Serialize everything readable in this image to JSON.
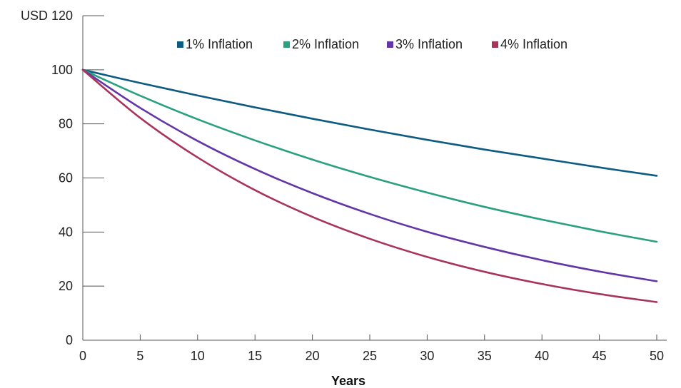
{
  "chart_data": {
    "type": "line",
    "title": "",
    "xlabel": "Years",
    "ylabel": "",
    "y_unit_label": "USD 120",
    "xlim": [
      0,
      50
    ],
    "ylim": [
      0,
      120
    ],
    "x_ticks": [
      0,
      5,
      10,
      15,
      20,
      25,
      30,
      35,
      40,
      45,
      50
    ],
    "y_ticks": [
      0,
      20,
      40,
      60,
      80,
      100,
      120
    ],
    "y_tick_labels": [
      "0",
      "20",
      "40",
      "60",
      "80",
      "100",
      "USD 120"
    ],
    "grid": false,
    "legend_position": "top",
    "x": [
      0,
      5,
      10,
      15,
      20,
      25,
      30,
      35,
      40,
      45,
      50
    ],
    "series": [
      {
        "name": "1% Inflation",
        "color": "#0e5b82",
        "values": [
          100,
          95.1,
          90.5,
          86.1,
          81.9,
          77.9,
          74.1,
          70.5,
          67.2,
          63.9,
          60.8
        ]
      },
      {
        "name": "2% Inflation",
        "color": "#2aa081",
        "values": [
          100,
          90.4,
          81.7,
          73.9,
          66.8,
          60.4,
          54.6,
          49.3,
          44.6,
          40.3,
          36.4
        ]
      },
      {
        "name": "3% Inflation",
        "color": "#6336a6",
        "values": [
          100,
          85.9,
          73.7,
          63.3,
          54.4,
          46.7,
          40.1,
          34.5,
          29.6,
          25.4,
          21.8
        ]
      },
      {
        "name": "4% Inflation",
        "color": "#a8345e",
        "values": [
          100,
          82.2,
          67.6,
          55.5,
          45.6,
          37.5,
          30.8,
          25.3,
          20.8,
          17.1,
          14.1
        ]
      }
    ]
  }
}
